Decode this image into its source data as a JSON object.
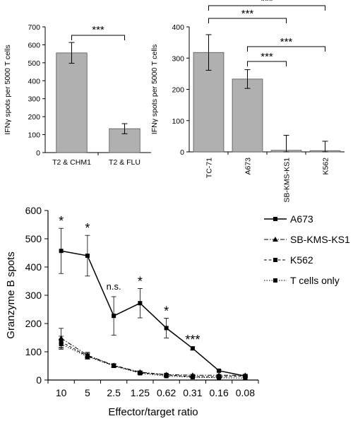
{
  "chart_data": [
    {
      "type": "bar",
      "ylabel": "IFNγ spots per 5000 T cells",
      "ylim": [
        0,
        700
      ],
      "yticks": [
        0,
        100,
        200,
        300,
        400,
        500,
        600,
        700
      ],
      "categories": [
        "T2 & CHM1",
        "T2 & FLU"
      ],
      "values": [
        555,
        133
      ],
      "errors": [
        58,
        28
      ],
      "bar_color": "#b0b0b0",
      "significance": [
        {
          "from": 0,
          "to": 1,
          "label": "***"
        }
      ]
    },
    {
      "type": "bar",
      "ylabel": "IFNγ spots per 5000 T cells",
      "ylim": [
        0,
        400
      ],
      "yticks": [
        0,
        100,
        200,
        300,
        400
      ],
      "categories": [
        "TC-71",
        "A673",
        "SB-KMS-KS1",
        "K562"
      ],
      "values": [
        318,
        233,
        5,
        4
      ],
      "errors": [
        57,
        30,
        48,
        30
      ],
      "bar_color": "#b0b0b0",
      "significance": [
        {
          "from": 0,
          "to": 2,
          "label": "***"
        },
        {
          "from": 0,
          "to": 3,
          "label": "***"
        },
        {
          "from": 1,
          "to": 2,
          "label": "***"
        },
        {
          "from": 1,
          "to": 3,
          "label": "***"
        }
      ]
    },
    {
      "type": "line",
      "xlabel": "Effector/target ratio",
      "ylabel": "Granzyme B spots",
      "ylim": [
        0,
        600
      ],
      "yticks": [
        0,
        100,
        200,
        300,
        400,
        500,
        600
      ],
      "categories": [
        "10",
        "5",
        "2.5",
        "1.25",
        "0.62",
        "0.31",
        "0.16",
        "0.08"
      ],
      "legend_position": "right",
      "series": [
        {
          "name": "A673",
          "style": "solid",
          "values": [
            457,
            440,
            227,
            272,
            184,
            112,
            33,
            14
          ],
          "errors": [
            80,
            72,
            68,
            52,
            35,
            6,
            3,
            2
          ]
        },
        {
          "name": "SB-KMS-KS1",
          "style": "dashdot",
          "values": [
            148,
            88,
            52,
            28,
            19,
            17,
            17,
            17
          ],
          "errors": [
            35,
            10,
            6,
            4,
            3,
            3,
            3,
            3
          ]
        },
        {
          "name": "K562",
          "style": "dashed",
          "values": [
            135,
            85,
            51,
            26,
            18,
            12,
            12,
            14
          ],
          "errors": [
            20,
            10,
            5,
            4,
            3,
            3,
            3,
            3
          ]
        },
        {
          "name": "T cells only",
          "style": "dotted",
          "values": [
            127,
            83,
            50,
            24,
            14,
            10,
            8,
            7
          ],
          "errors": [
            18,
            9,
            5,
            4,
            3,
            2,
            2,
            2
          ]
        }
      ],
      "annotations": [
        "*",
        "*",
        "n.s.",
        "*",
        "*",
        "***",
        "",
        ""
      ]
    }
  ]
}
